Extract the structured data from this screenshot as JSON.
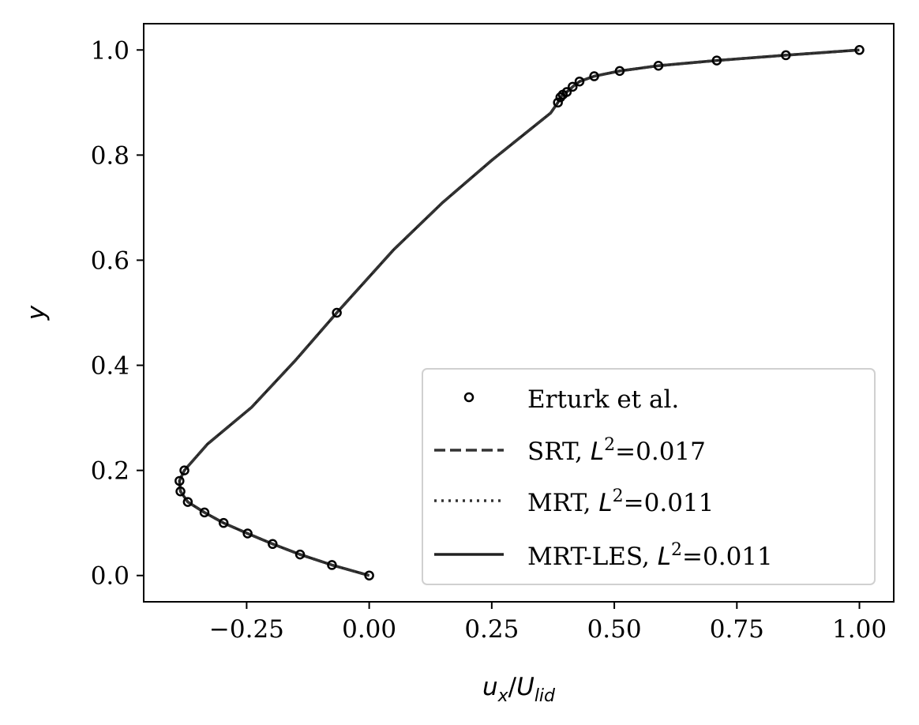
{
  "chart_data": {
    "type": "line",
    "xlabel": {
      "base": "u",
      "base_sub": "x",
      "slash": "/",
      "denom": "U",
      "denom_sub": "lid"
    },
    "ylabel": "y",
    "xlim": [
      -0.46,
      1.07
    ],
    "ylim": [
      -0.05,
      1.05
    ],
    "xticks": [
      -0.25,
      0.0,
      0.25,
      0.5,
      0.75,
      1.0
    ],
    "xtick_labels": [
      "−0.25",
      "0.00",
      "0.25",
      "0.50",
      "0.75",
      "1.00"
    ],
    "yticks": [
      0.0,
      0.2,
      0.4,
      0.6,
      0.8,
      1.0
    ],
    "ytick_labels": [
      "0.0",
      "0.2",
      "0.4",
      "0.6",
      "0.8",
      "1.0"
    ],
    "grid": false,
    "legend_position": "lower-right",
    "series": [
      {
        "name": "Erturk et al.",
        "style": "markers",
        "color": "#000000",
        "x": [
          0.0,
          -0.076,
          -0.141,
          -0.197,
          -0.248,
          -0.297,
          -0.336,
          -0.37,
          -0.385,
          -0.387,
          -0.377,
          -0.066,
          0.385,
          0.39,
          0.395,
          0.403,
          0.415,
          0.429,
          0.459,
          0.511,
          0.59,
          0.709,
          0.85,
          1.0
        ],
        "y": [
          0.0,
          0.02,
          0.04,
          0.06,
          0.08,
          0.1,
          0.12,
          0.14,
          0.16,
          0.18,
          0.2,
          0.5,
          0.9,
          0.91,
          0.915,
          0.92,
          0.93,
          0.94,
          0.95,
          0.96,
          0.97,
          0.98,
          0.99,
          1.0
        ]
      },
      {
        "name_prefix": "SRT, ",
        "name_math": "L",
        "name_sup": "2",
        "name_value": "=0.017",
        "style": "dashed",
        "color": "#333333",
        "x": [
          0.0,
          -0.076,
          -0.141,
          -0.197,
          -0.248,
          -0.297,
          -0.336,
          -0.37,
          -0.385,
          -0.387,
          -0.377,
          -0.33,
          -0.24,
          -0.15,
          -0.066,
          0.05,
          0.15,
          0.25,
          0.33,
          0.37,
          0.385,
          0.39,
          0.395,
          0.403,
          0.415,
          0.429,
          0.459,
          0.511,
          0.59,
          0.709,
          0.85,
          1.0
        ],
        "y": [
          0.0,
          0.02,
          0.04,
          0.06,
          0.08,
          0.1,
          0.12,
          0.14,
          0.16,
          0.18,
          0.2,
          0.25,
          0.32,
          0.41,
          0.5,
          0.62,
          0.71,
          0.79,
          0.85,
          0.88,
          0.9,
          0.91,
          0.915,
          0.92,
          0.93,
          0.94,
          0.95,
          0.96,
          0.97,
          0.98,
          0.99,
          1.0
        ]
      },
      {
        "name_prefix": "MRT, ",
        "name_math": "L",
        "name_sup": "2",
        "name_value": "=0.011",
        "style": "dotted",
        "color": "#333333",
        "x": [
          0.0,
          -0.076,
          -0.141,
          -0.197,
          -0.248,
          -0.297,
          -0.336,
          -0.37,
          -0.385,
          -0.387,
          -0.377,
          -0.33,
          -0.24,
          -0.15,
          -0.066,
          0.05,
          0.15,
          0.25,
          0.33,
          0.37,
          0.385,
          0.39,
          0.395,
          0.403,
          0.415,
          0.429,
          0.459,
          0.511,
          0.59,
          0.709,
          0.85,
          1.0
        ],
        "y": [
          0.0,
          0.02,
          0.04,
          0.06,
          0.08,
          0.1,
          0.12,
          0.14,
          0.16,
          0.18,
          0.2,
          0.25,
          0.32,
          0.41,
          0.5,
          0.62,
          0.71,
          0.79,
          0.85,
          0.88,
          0.9,
          0.91,
          0.915,
          0.92,
          0.93,
          0.94,
          0.95,
          0.96,
          0.97,
          0.98,
          0.99,
          1.0
        ]
      },
      {
        "name_prefix": "MRT-LES, ",
        "name_math": "L",
        "name_sup": "2",
        "name_value": "=0.011",
        "style": "solid",
        "color": "#222222",
        "x": [
          0.0,
          -0.076,
          -0.141,
          -0.197,
          -0.248,
          -0.297,
          -0.336,
          -0.37,
          -0.385,
          -0.387,
          -0.377,
          -0.33,
          -0.24,
          -0.15,
          -0.066,
          0.05,
          0.15,
          0.25,
          0.33,
          0.37,
          0.385,
          0.39,
          0.395,
          0.403,
          0.415,
          0.429,
          0.459,
          0.511,
          0.59,
          0.709,
          0.85,
          1.0
        ],
        "y": [
          0.0,
          0.02,
          0.04,
          0.06,
          0.08,
          0.1,
          0.12,
          0.14,
          0.16,
          0.18,
          0.2,
          0.25,
          0.32,
          0.41,
          0.5,
          0.62,
          0.71,
          0.79,
          0.85,
          0.88,
          0.9,
          0.91,
          0.915,
          0.92,
          0.93,
          0.94,
          0.95,
          0.96,
          0.97,
          0.98,
          0.99,
          1.0
        ]
      }
    ]
  }
}
